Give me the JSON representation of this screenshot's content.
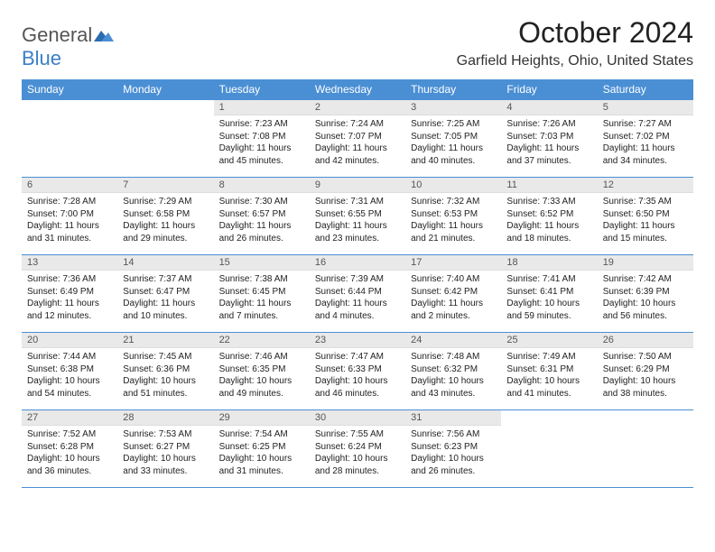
{
  "logo": {
    "word1": "General",
    "word2": "Blue"
  },
  "title": {
    "month": "October 2024",
    "location": "Garfield Heights, Ohio, United States"
  },
  "colors": {
    "header_bg": "#4a8fd4",
    "header_fg": "#ffffff",
    "daynum_bg": "#e9e9e9",
    "rule": "#4a8fd4"
  },
  "weekdays": [
    "Sunday",
    "Monday",
    "Tuesday",
    "Wednesday",
    "Thursday",
    "Friday",
    "Saturday"
  ],
  "weeks": [
    [
      {
        "empty": true
      },
      {
        "empty": true
      },
      {
        "num": "1",
        "sunrise": "7:23 AM",
        "sunset": "7:08 PM",
        "daylight": "11 hours and 45 minutes."
      },
      {
        "num": "2",
        "sunrise": "7:24 AM",
        "sunset": "7:07 PM",
        "daylight": "11 hours and 42 minutes."
      },
      {
        "num": "3",
        "sunrise": "7:25 AM",
        "sunset": "7:05 PM",
        "daylight": "11 hours and 40 minutes."
      },
      {
        "num": "4",
        "sunrise": "7:26 AM",
        "sunset": "7:03 PM",
        "daylight": "11 hours and 37 minutes."
      },
      {
        "num": "5",
        "sunrise": "7:27 AM",
        "sunset": "7:02 PM",
        "daylight": "11 hours and 34 minutes."
      }
    ],
    [
      {
        "num": "6",
        "sunrise": "7:28 AM",
        "sunset": "7:00 PM",
        "daylight": "11 hours and 31 minutes."
      },
      {
        "num": "7",
        "sunrise": "7:29 AM",
        "sunset": "6:58 PM",
        "daylight": "11 hours and 29 minutes."
      },
      {
        "num": "8",
        "sunrise": "7:30 AM",
        "sunset": "6:57 PM",
        "daylight": "11 hours and 26 minutes."
      },
      {
        "num": "9",
        "sunrise": "7:31 AM",
        "sunset": "6:55 PM",
        "daylight": "11 hours and 23 minutes."
      },
      {
        "num": "10",
        "sunrise": "7:32 AM",
        "sunset": "6:53 PM",
        "daylight": "11 hours and 21 minutes."
      },
      {
        "num": "11",
        "sunrise": "7:33 AM",
        "sunset": "6:52 PM",
        "daylight": "11 hours and 18 minutes."
      },
      {
        "num": "12",
        "sunrise": "7:35 AM",
        "sunset": "6:50 PM",
        "daylight": "11 hours and 15 minutes."
      }
    ],
    [
      {
        "num": "13",
        "sunrise": "7:36 AM",
        "sunset": "6:49 PM",
        "daylight": "11 hours and 12 minutes."
      },
      {
        "num": "14",
        "sunrise": "7:37 AM",
        "sunset": "6:47 PM",
        "daylight": "11 hours and 10 minutes."
      },
      {
        "num": "15",
        "sunrise": "7:38 AM",
        "sunset": "6:45 PM",
        "daylight": "11 hours and 7 minutes."
      },
      {
        "num": "16",
        "sunrise": "7:39 AM",
        "sunset": "6:44 PM",
        "daylight": "11 hours and 4 minutes."
      },
      {
        "num": "17",
        "sunrise": "7:40 AM",
        "sunset": "6:42 PM",
        "daylight": "11 hours and 2 minutes."
      },
      {
        "num": "18",
        "sunrise": "7:41 AM",
        "sunset": "6:41 PM",
        "daylight": "10 hours and 59 minutes."
      },
      {
        "num": "19",
        "sunrise": "7:42 AM",
        "sunset": "6:39 PM",
        "daylight": "10 hours and 56 minutes."
      }
    ],
    [
      {
        "num": "20",
        "sunrise": "7:44 AM",
        "sunset": "6:38 PM",
        "daylight": "10 hours and 54 minutes."
      },
      {
        "num": "21",
        "sunrise": "7:45 AM",
        "sunset": "6:36 PM",
        "daylight": "10 hours and 51 minutes."
      },
      {
        "num": "22",
        "sunrise": "7:46 AM",
        "sunset": "6:35 PM",
        "daylight": "10 hours and 49 minutes."
      },
      {
        "num": "23",
        "sunrise": "7:47 AM",
        "sunset": "6:33 PM",
        "daylight": "10 hours and 46 minutes."
      },
      {
        "num": "24",
        "sunrise": "7:48 AM",
        "sunset": "6:32 PM",
        "daylight": "10 hours and 43 minutes."
      },
      {
        "num": "25",
        "sunrise": "7:49 AM",
        "sunset": "6:31 PM",
        "daylight": "10 hours and 41 minutes."
      },
      {
        "num": "26",
        "sunrise": "7:50 AM",
        "sunset": "6:29 PM",
        "daylight": "10 hours and 38 minutes."
      }
    ],
    [
      {
        "num": "27",
        "sunrise": "7:52 AM",
        "sunset": "6:28 PM",
        "daylight": "10 hours and 36 minutes."
      },
      {
        "num": "28",
        "sunrise": "7:53 AM",
        "sunset": "6:27 PM",
        "daylight": "10 hours and 33 minutes."
      },
      {
        "num": "29",
        "sunrise": "7:54 AM",
        "sunset": "6:25 PM",
        "daylight": "10 hours and 31 minutes."
      },
      {
        "num": "30",
        "sunrise": "7:55 AM",
        "sunset": "6:24 PM",
        "daylight": "10 hours and 28 minutes."
      },
      {
        "num": "31",
        "sunrise": "7:56 AM",
        "sunset": "6:23 PM",
        "daylight": "10 hours and 26 minutes."
      },
      {
        "empty": true
      },
      {
        "empty": true
      }
    ]
  ],
  "labels": {
    "sunrise": "Sunrise:",
    "sunset": "Sunset:",
    "daylight": "Daylight:"
  }
}
